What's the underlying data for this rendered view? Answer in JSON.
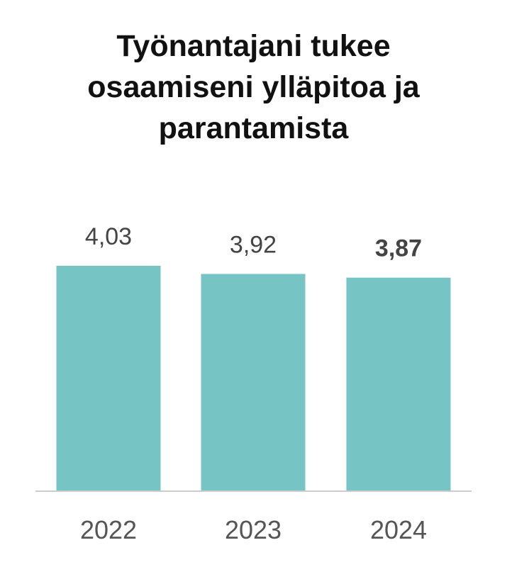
{
  "chart_data": {
    "type": "bar",
    "title_lines": [
      "Työnantajani tukee",
      "osaamiseni ylläpitoa ja",
      "parantamista"
    ],
    "categories": [
      "2022",
      "2023",
      "2024"
    ],
    "values": [
      4.03,
      3.92,
      3.87
    ],
    "value_labels": [
      "4,03",
      "3,92",
      "3,87"
    ],
    "highlighted_index": 2,
    "bar_color": "#76C4C4",
    "baseline_color": "#cccccc",
    "ylim": [
      1,
      5
    ],
    "xlabel": "",
    "ylabel": "",
    "grid": false,
    "legend": "none"
  }
}
